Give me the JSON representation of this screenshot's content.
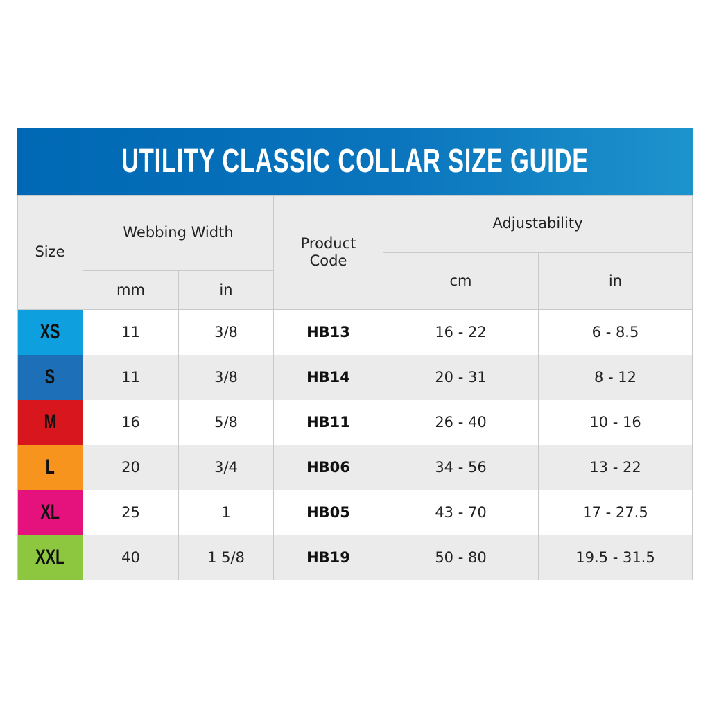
{
  "title": "UTILITY CLASSIC COLLAR SIZE GUIDE",
  "headers": {
    "size": "Size",
    "webbing_width": "Webbing Width",
    "mm": "mm",
    "in": "in",
    "product_code": "Product Code",
    "adjustability": "Adjustability",
    "cm": "cm",
    "adj_in": "in"
  },
  "rows": [
    {
      "size": "XS",
      "color": "#0ea0de",
      "mm": "11",
      "in": "3/8",
      "code": "HB13",
      "cm": "16 - 22",
      "adj_in": "6 - 8.5"
    },
    {
      "size": "S",
      "color": "#1d6fb8",
      "mm": "11",
      "in": "3/8",
      "code": "HB14",
      "cm": "20 - 31",
      "adj_in": "8 - 12"
    },
    {
      "size": "M",
      "color": "#d7161e",
      "mm": "16",
      "in": "5/8",
      "code": "HB11",
      "cm": "26 - 40",
      "adj_in": "10 - 16"
    },
    {
      "size": "L",
      "color": "#f7941d",
      "mm": "20",
      "in": "3/4",
      "code": "HB06",
      "cm": "34 - 56",
      "adj_in": "13 - 22"
    },
    {
      "size": "XL",
      "color": "#e5127d",
      "mm": "25",
      "in": "1",
      "code": "HB05",
      "cm": "43 - 70",
      "adj_in": "17 - 27.5"
    },
    {
      "size": "XXL",
      "color": "#8dc63f",
      "mm": "40",
      "in": "1 5/8",
      "code": "HB19",
      "cm": "50 - 80",
      "adj_in": "19.5 - 31.5"
    }
  ]
}
